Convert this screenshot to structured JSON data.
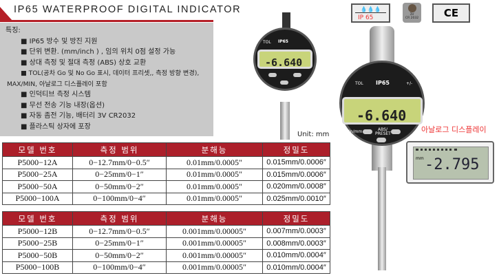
{
  "title": "IP65 WATERPROOF DIGITAL INDICATOR",
  "features": {
    "heading": "특징:",
    "items": [
      "■ IP65 방수 및 방진 지원",
      "■ 단위 변환. (mm/inch ) , 임의 위치 0점 설정 가능",
      "■ 상대 측정 및 절대 측정  (ABS) 상호 교환",
      "■ TOL(공차 Go 및 No Go 표시, 데이터 프리셋,, 측정 방향 변경),",
      "MAX/MIN, 아날로그 디스플레이 포함",
      "■ 인덕티브 측정 시스템",
      "■ 무선 전송 기능 내장(옵션)",
      "■ 자동 좀전 기능, 배터리 3V CR2032",
      "■ 플라스틱 상자에 포장"
    ]
  },
  "unit": "Unit: mm",
  "badges": {
    "ip": "IP 65",
    "battery_v": "3V",
    "battery": "CR 2032",
    "ce": "CE"
  },
  "gauge": {
    "brand": "IP65",
    "tol": "TOL",
    "plusminus": "+/-",
    "reading": "-6.640",
    "unit_small": "mm",
    "inc": "INC",
    "btn_left": "in/mm",
    "btn_center": "ABS/ PRESET"
  },
  "analog": {
    "label": "아날로그 디스플레이",
    "reading": "-2.795",
    "unit": "mm"
  },
  "table_a": {
    "headers": [
      "모델 번호",
      "측정 범위",
      "분해능",
      "정밀도"
    ],
    "rows": [
      [
        "P5000−12A",
        "0−12.7mm/0−0.5″",
        "0.01mm/0.0005″",
        "0.015mm/0.0006″"
      ],
      [
        "P5000−25A",
        "0−25mm/0−1″",
        "0.01mm/0.0005″",
        "0.015mm/0.0006″"
      ],
      [
        "P5000−50A",
        "0−50mm/0−2″",
        "0.01mm/0.0005″",
        "0.020mm/0.0008″"
      ],
      [
        "P5000−100A",
        "0−100mm/0−4″",
        "0.01mm/0.0005″",
        "0.025mm/0.0010″"
      ]
    ]
  },
  "table_b": {
    "headers": [
      "모델 번호",
      "측정 범위",
      "분해능",
      "정밀도"
    ],
    "rows": [
      [
        "P5000−12B",
        "0−12.7mm/0−0.5″",
        "0.001mm/0.00005″",
        "0.007mm/0.0003″"
      ],
      [
        "P5000−25B",
        "0−25mm/0−1″",
        "0.001mm/0.00005″",
        "0.008mm/0.0003″"
      ],
      [
        "P5000−50B",
        "0−50mm/0−2″",
        "0.001mm/0.00005″",
        "0.010mm/0.0004″"
      ],
      [
        "P5000−100B",
        "0−100mm/0−4″",
        "0.001mm/0.00005″",
        "0.010mm/0.0004″"
      ]
    ]
  },
  "colors": {
    "accent": "#ac1f2a",
    "panel": "#c9c9c9",
    "lcd": "#c8d47a"
  }
}
